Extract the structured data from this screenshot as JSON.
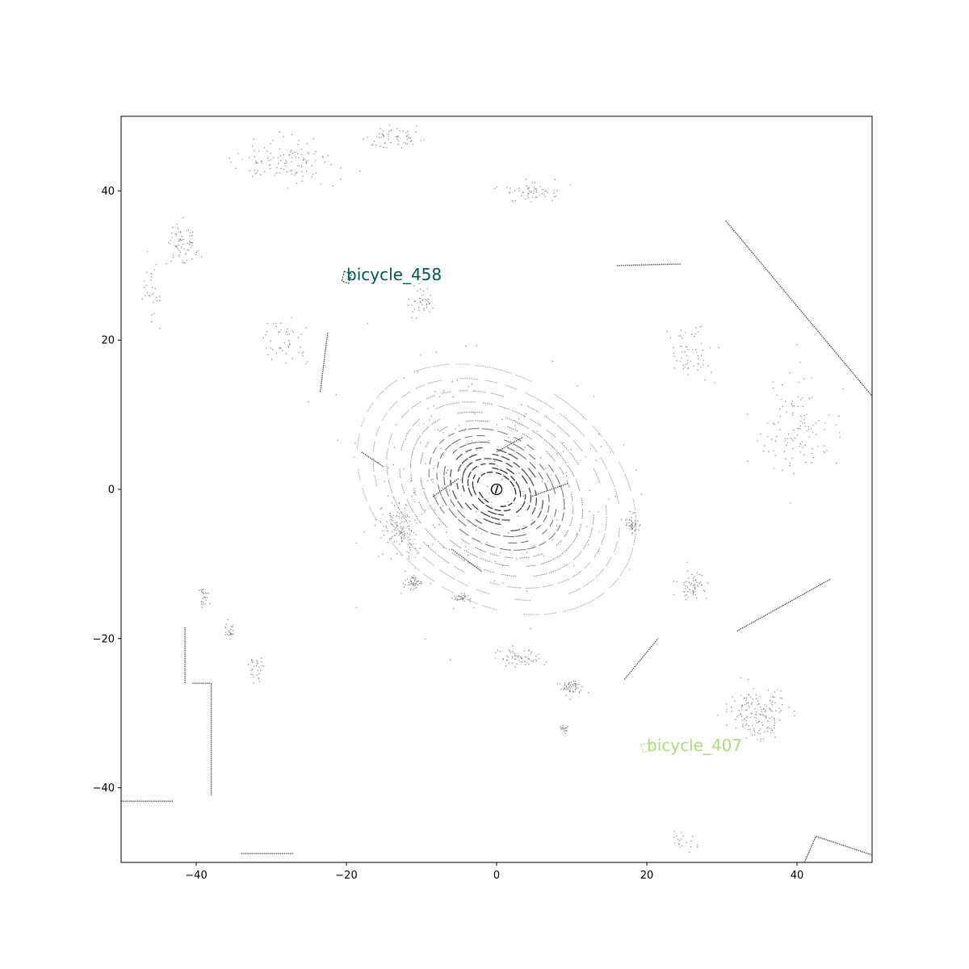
{
  "chart_data": {
    "type": "scatter",
    "title": "",
    "xlabel": "",
    "ylabel": "",
    "xlim": [
      -50,
      50
    ],
    "ylim": [
      -50,
      50
    ],
    "x_ticks": [
      -40,
      -20,
      0,
      20,
      40
    ],
    "y_ticks": [
      40,
      20,
      0,
      -20,
      -40
    ],
    "x_tick_labels": [
      "−40",
      "−20",
      "0",
      "20",
      "40"
    ],
    "y_tick_labels": [
      "40",
      "20",
      "0",
      "−20",
      "−40"
    ],
    "grid": false,
    "point_color": "#000000",
    "ego_marker": {
      "x": 0,
      "y": 0
    },
    "annotations": [
      {
        "label": "bicycle_458",
        "x": -20,
        "y": 28.8,
        "color": "#00574b",
        "box": [
          [
            -20.3,
            29.2
          ],
          [
            -19.3,
            28.9
          ],
          [
            -19.7,
            27.6
          ],
          [
            -20.6,
            27.9
          ]
        ]
      },
      {
        "label": "bicycle_407",
        "x": 20,
        "y": -34.3,
        "color": "#addc7f",
        "box": [
          [
            19.2,
            -34.2
          ],
          [
            20.6,
            -34.0
          ],
          [
            20.9,
            -35.0
          ],
          [
            19.5,
            -35.2
          ]
        ]
      }
    ],
    "rings": [
      {
        "r": 2.4
      },
      {
        "r": 3.0
      },
      {
        "r": 3.6
      },
      {
        "r": 4.3
      },
      {
        "r": 5.0
      },
      {
        "r": 5.8
      },
      {
        "r": 6.6
      },
      {
        "r": 7.5
      },
      {
        "r": 8.5
      },
      {
        "r": 9.6
      },
      {
        "r": 10.8
      },
      {
        "r": 12.2
      },
      {
        "r": 13.8
      },
      {
        "r": 15.5
      },
      {
        "r": 17.5
      }
    ],
    "line_segments": [
      {
        "from": [
          30.5,
          36.0
        ],
        "to": [
          50,
          12.5
        ]
      },
      {
        "from": [
          16.0,
          30.0
        ],
        "to": [
          24.5,
          30.2
        ]
      },
      {
        "from": [
          -22.5,
          21.0
        ],
        "to": [
          -23.5,
          13.0
        ]
      },
      {
        "from": [
          -40.5,
          -26.0
        ],
        "to": [
          -38.0,
          -26.0
        ]
      },
      {
        "from": [
          -38.0,
          -26.0
        ],
        "to": [
          -38.0,
          -41.0
        ]
      },
      {
        "from": [
          -41.5,
          -18.5
        ],
        "to": [
          -41.5,
          -26.0
        ]
      },
      {
        "from": [
          -50.0,
          -41.8
        ],
        "to": [
          -43.0,
          -41.8
        ]
      },
      {
        "from": [
          -34.0,
          -48.8
        ],
        "to": [
          -27.0,
          -48.8
        ]
      },
      {
        "from": [
          41.0,
          -50.0
        ],
        "to": [
          42.5,
          -46.5
        ]
      },
      {
        "from": [
          42.5,
          -46.5
        ],
        "to": [
          50.0,
          -49.0
        ]
      },
      {
        "from": [
          32.0,
          -19.0
        ],
        "to": [
          44.5,
          -12.0
        ]
      },
      {
        "from": [
          17.0,
          -25.5
        ],
        "to": [
          21.5,
          -20.0
        ]
      },
      {
        "from": [
          -8.5,
          -1.0
        ],
        "to": [
          -5.0,
          1.5
        ]
      },
      {
        "from": [
          4.5,
          -1.0
        ],
        "to": [
          9.5,
          0.8
        ]
      },
      {
        "from": [
          0.0,
          5.0
        ],
        "to": [
          3.5,
          7.0
        ]
      },
      {
        "from": [
          -6.0,
          -8.0
        ],
        "to": [
          -2.0,
          -11.0
        ]
      },
      {
        "from": [
          -18.0,
          5.0
        ],
        "to": [
          -15.0,
          3.0
        ]
      }
    ],
    "clusters": [
      {
        "cx": -10,
        "cy": 25,
        "n": 40,
        "sx": 2.5,
        "sy": 3.0
      },
      {
        "cx": -28,
        "cy": 44,
        "n": 120,
        "sx": 10,
        "sy": 4
      },
      {
        "cx": -14,
        "cy": 47,
        "n": 60,
        "sx": 6,
        "sy": 2
      },
      {
        "cx": -42,
        "cy": 33,
        "n": 70,
        "sx": 3,
        "sy": 4
      },
      {
        "cx": -46,
        "cy": 27,
        "n": 30,
        "sx": 2,
        "sy": 6
      },
      {
        "cx": -28,
        "cy": 20,
        "n": 50,
        "sx": 4,
        "sy": 4
      },
      {
        "cx": -13,
        "cy": -5,
        "n": 140,
        "sx": 4,
        "sy": 5
      },
      {
        "cx": -11,
        "cy": -12.5,
        "n": 50,
        "sx": 1.5,
        "sy": 1.2
      },
      {
        "cx": -4.5,
        "cy": -14.5,
        "n": 40,
        "sx": 1.5,
        "sy": 0.8
      },
      {
        "cx": 18,
        "cy": -5,
        "n": 50,
        "sx": 1.5,
        "sy": 2.0
      },
      {
        "cx": 10,
        "cy": -26.5,
        "n": 60,
        "sx": 2,
        "sy": 1.5
      },
      {
        "cx": 3,
        "cy": -22.5,
        "n": 60,
        "sx": 4,
        "sy": 2
      },
      {
        "cx": 26,
        "cy": -13,
        "n": 60,
        "sx": 3,
        "sy": 3
      },
      {
        "cx": 35,
        "cy": -30,
        "n": 160,
        "sx": 6,
        "sy": 5
      },
      {
        "cx": 40,
        "cy": 8,
        "n": 120,
        "sx": 7,
        "sy": 10
      },
      {
        "cx": 26,
        "cy": 18,
        "n": 60,
        "sx": 4,
        "sy": 5
      },
      {
        "cx": 5,
        "cy": 40,
        "n": 60,
        "sx": 6,
        "sy": 2
      },
      {
        "cx": -39,
        "cy": -14.5,
        "n": 25,
        "sx": 1,
        "sy": 2
      },
      {
        "cx": -35.5,
        "cy": -19,
        "n": 25,
        "sx": 1,
        "sy": 1.5
      },
      {
        "cx": -32,
        "cy": -24,
        "n": 30,
        "sx": 1.5,
        "sy": 2
      },
      {
        "cx": 9,
        "cy": -32,
        "n": 20,
        "sx": 1,
        "sy": 1
      },
      {
        "cx": 25,
        "cy": -47,
        "n": 20,
        "sx": 4,
        "sy": 2
      },
      {
        "cx": 0,
        "cy": 0,
        "n": 200,
        "sx": 25,
        "sy": 25
      }
    ]
  }
}
